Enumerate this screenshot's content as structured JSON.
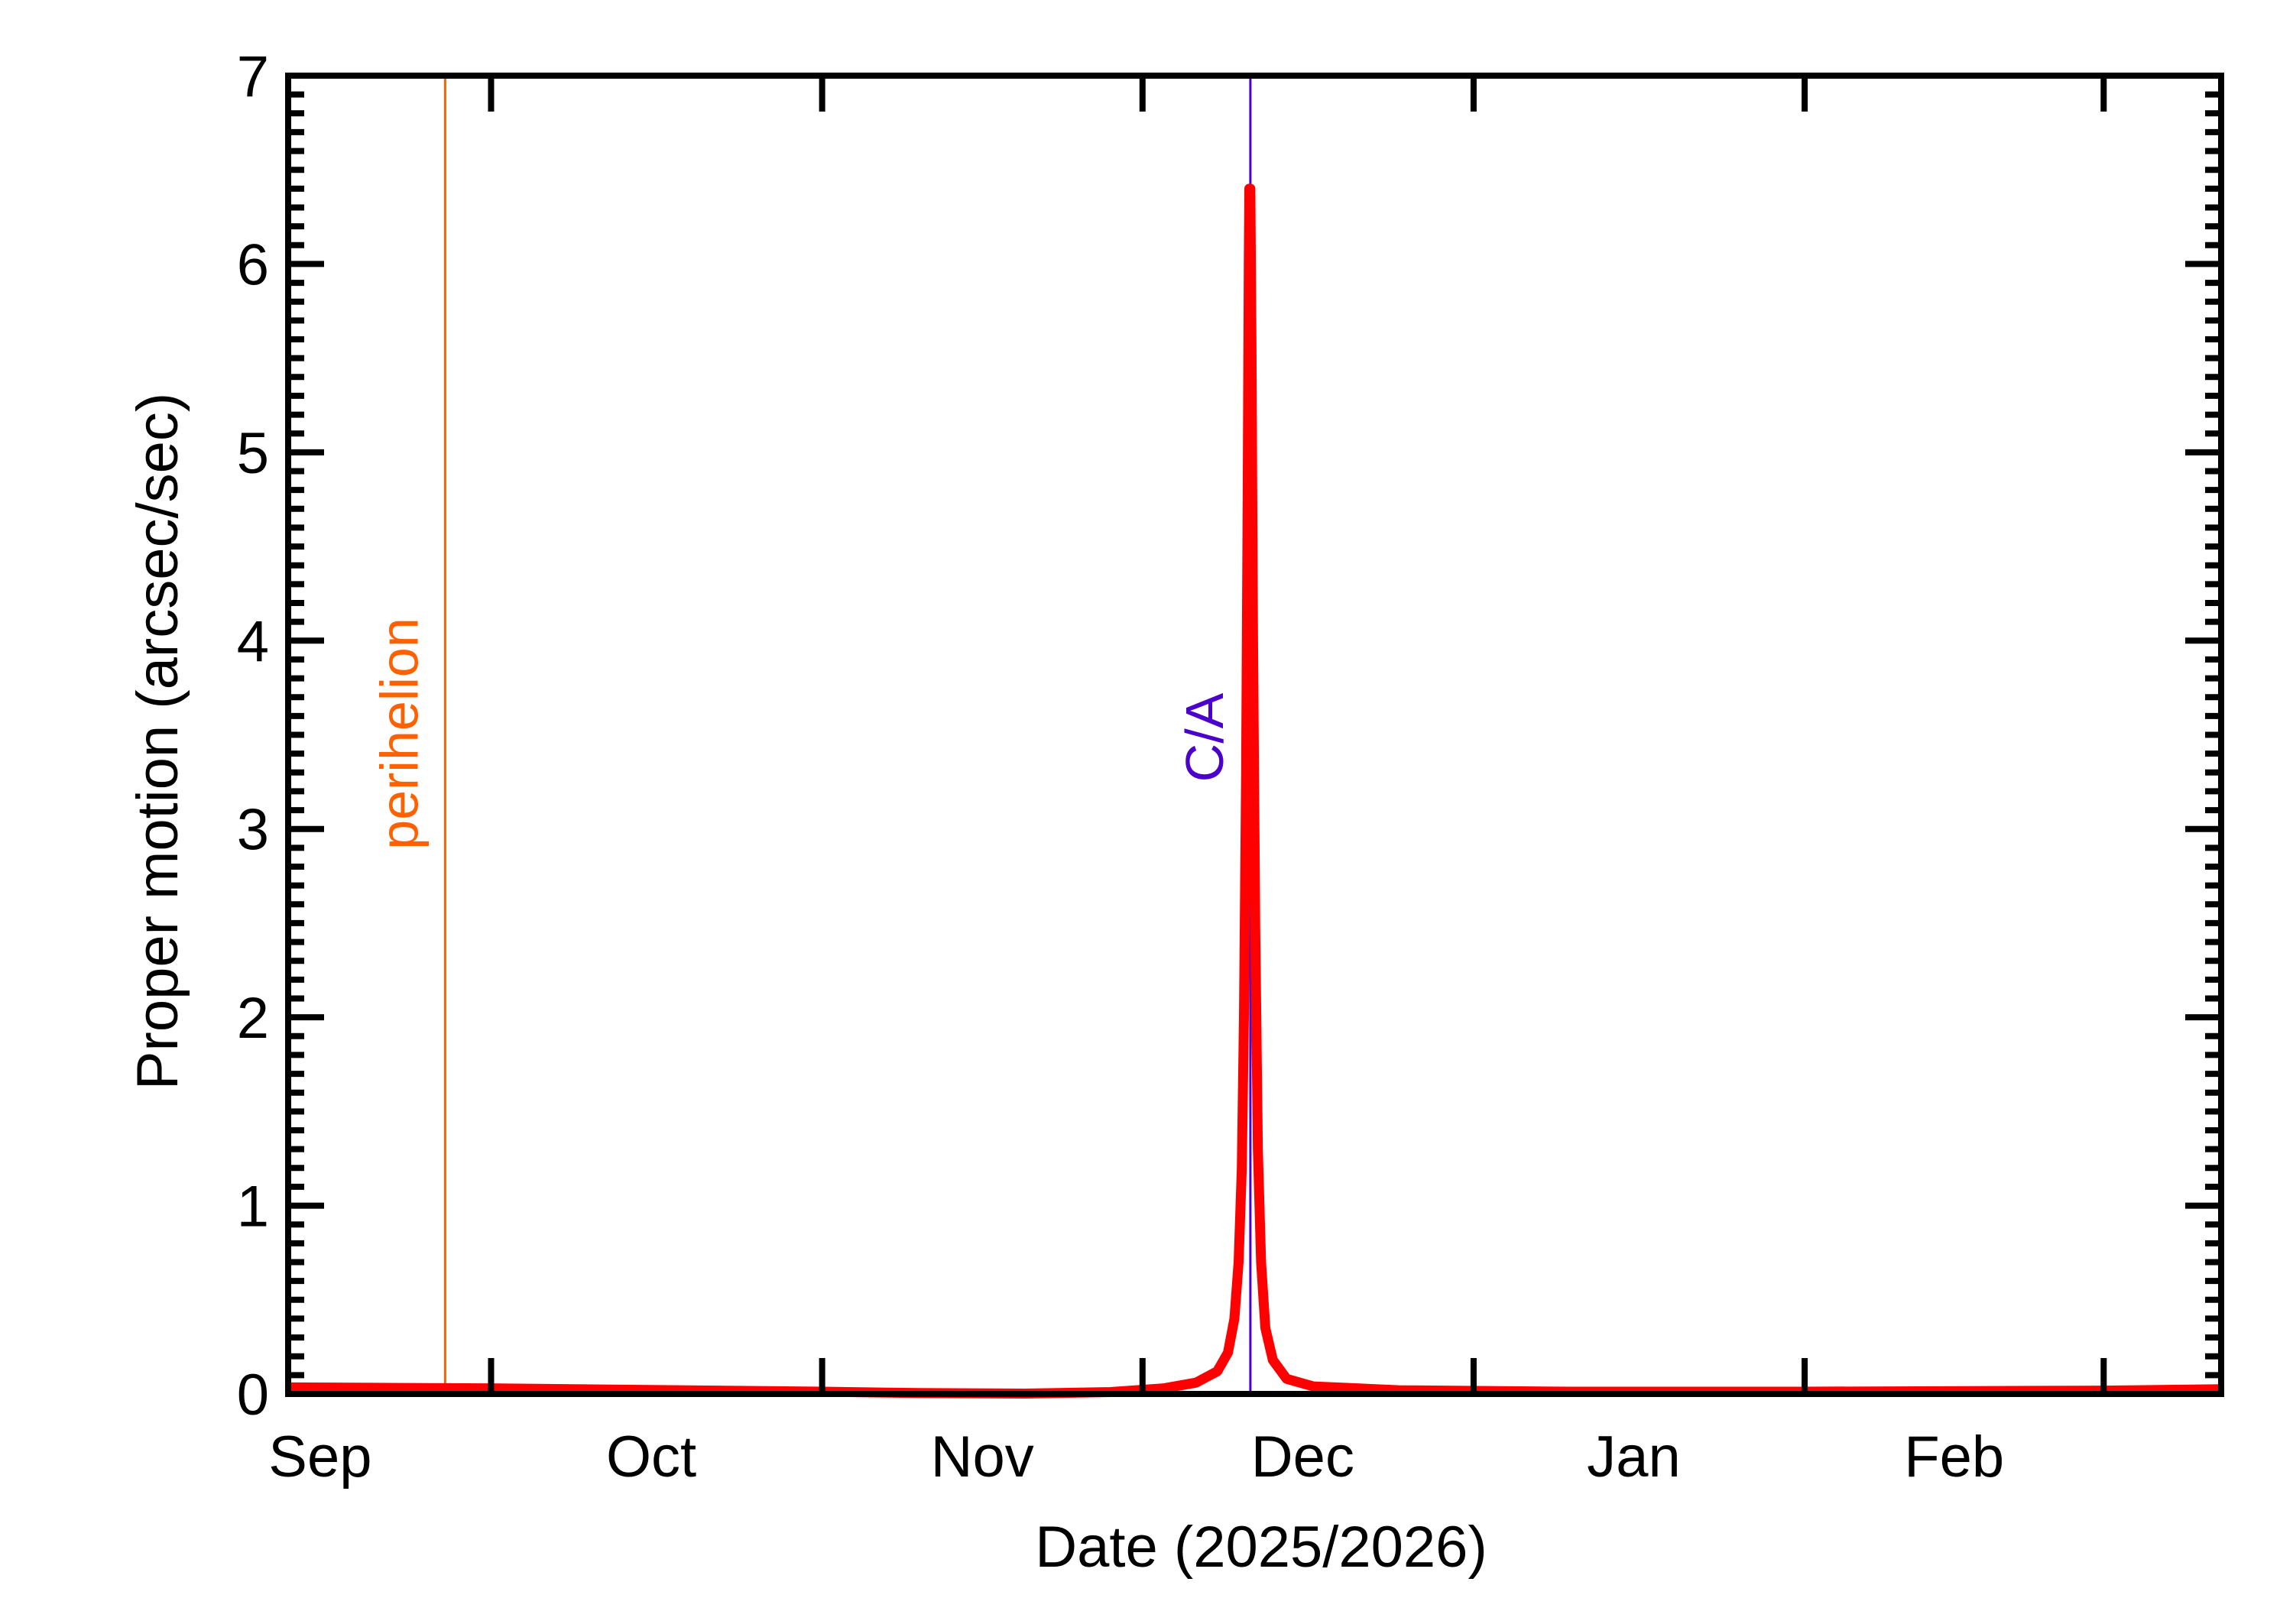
{
  "chart_data": {
    "type": "line",
    "title": "",
    "xlabel": "Date (2025/2026)",
    "ylabel": "Proper motion (arcsec/sec)",
    "xlim": [
      "2025-09-12",
      "2026-03-12"
    ],
    "ylim": [
      0,
      7
    ],
    "y_ticks": [
      0,
      1,
      2,
      3,
      4,
      5,
      6,
      7
    ],
    "y_minor_step": 0.1,
    "x_tick_dates": [
      "2025-10-01",
      "2025-11-01",
      "2025-12-01",
      "2026-01-01",
      "2026-02-01",
      "2026-03-01"
    ],
    "x_tick_labels": [
      {
        "label": "Sep",
        "date": "2025-09-15"
      },
      {
        "label": "Oct",
        "date": "2025-10-16"
      },
      {
        "label": "Nov",
        "date": "2025-11-16"
      },
      {
        "label": "Dec",
        "date": "2025-12-16"
      },
      {
        "label": "Jan",
        "date": "2026-01-16"
      },
      {
        "label": "Feb",
        "date": "2026-02-15"
      }
    ],
    "grid": false,
    "series": [
      {
        "color": "#ff0000",
        "points": [
          [
            "2025-09-12",
            0.035
          ],
          [
            "2025-09-20",
            0.033
          ],
          [
            "2025-10-01",
            0.03
          ],
          [
            "2025-10-15",
            0.022
          ],
          [
            "2025-11-01",
            0.012
          ],
          [
            "2025-11-10",
            0.005
          ],
          [
            "2025-11-20",
            0.002
          ],
          [
            "2025-11-28",
            0.01
          ],
          [
            "2025-12-03",
            0.03
          ],
          [
            "2025-12-06",
            0.06
          ],
          [
            "2025-12-08",
            0.12
          ],
          [
            "2025-12-09",
            0.22
          ],
          [
            "2025-12-09.6",
            0.4
          ],
          [
            "2025-12-10",
            0.7
          ],
          [
            "2025-12-10.3",
            1.2
          ],
          [
            "2025-12-10.5",
            2.0
          ],
          [
            "2025-12-10.7",
            3.3
          ],
          [
            "2025-12-10.85",
            4.8
          ],
          [
            "2025-12-10.95",
            6.0
          ],
          [
            "2025-12-11",
            6.4
          ],
          [
            "2025-12-11.1",
            6.4
          ],
          [
            "2025-12-11.2",
            5.6
          ],
          [
            "2025-12-11.35",
            4.0
          ],
          [
            "2025-12-11.55",
            2.5
          ],
          [
            "2025-12-11.8",
            1.3
          ],
          [
            "2025-12-12.1",
            0.7
          ],
          [
            "2025-12-12.5",
            0.35
          ],
          [
            "2025-12-13.2",
            0.18
          ],
          [
            "2025-12-14.5",
            0.08
          ],
          [
            "2025-12-17",
            0.04
          ],
          [
            "2025-12-25",
            0.02
          ],
          [
            "2026-01-10",
            0.012
          ],
          [
            "2026-02-01",
            0.012
          ],
          [
            "2026-03-01",
            0.018
          ],
          [
            "2026-03-12",
            0.025
          ]
        ]
      }
    ],
    "annotations": [
      {
        "label": "perihelion",
        "date": "2025-09-26.7",
        "color": "#ff6000"
      },
      {
        "label": "C/A",
        "date": "2025-12-11.1",
        "color": "#4c00cc"
      }
    ]
  }
}
